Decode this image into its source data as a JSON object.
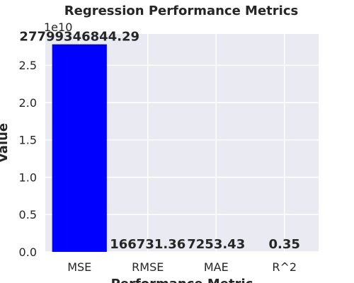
{
  "chart_data": {
    "type": "bar",
    "title": "Regression Performance Metrics",
    "xlabel": "Performance Metric",
    "ylabel": "Value",
    "categories": [
      "MSE",
      "RMSE",
      "MAE",
      "R^2"
    ],
    "values": [
      27799346844.29,
      166731.36,
      7253.43,
      0.35
    ],
    "data_labels": [
      "27799346844.29",
      "166731.36",
      "7253.43",
      "0.35"
    ],
    "y_tick_labels": [
      "0.0",
      "0.5",
      "1.0",
      "1.5",
      "2.0",
      "2.5"
    ],
    "y_tick_values": [
      0,
      5000000000,
      10000000000,
      15000000000,
      20000000000,
      25000000000
    ],
    "y_offset_text": "1e10",
    "ylim": [
      0,
      29189314186.5
    ],
    "grid": true,
    "bar_color": "#0000ff",
    "background_color": "#eaeaf2",
    "grid_color": "#ffffff"
  }
}
